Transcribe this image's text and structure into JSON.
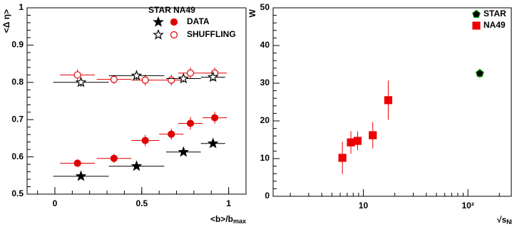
{
  "chart_data": [
    {
      "type": "scatter",
      "y_label": "<Δ η>",
      "x_label": "<b>/b",
      "x_label_sub": "max",
      "xlim": [
        -0.16,
        1.1
      ],
      "ylim": [
        0.5,
        1
      ],
      "xticks": [
        0,
        0.5,
        1
      ],
      "yticks": [
        0.5,
        0.6,
        0.7,
        0.8,
        0.9,
        1
      ],
      "legend": {
        "title": "STAR NA49",
        "labels": [
          "DATA",
          "SHUFFLING"
        ]
      },
      "series": [
        {
          "legend": 1,
          "marker": "circle",
          "filled": false,
          "color": "#e00000",
          "x": [
            0.13,
            0.34,
            0.52,
            0.67,
            0.78,
            0.92
          ],
          "values": [
            0.82,
            0.808,
            0.806,
            0.806,
            0.825,
            0.825
          ],
          "xerr": [
            0.1,
            0.1,
            0.08,
            0.07,
            0.07,
            0.07
          ],
          "yerr": [
            0.015,
            0.012,
            0.015,
            0.015,
            0.015,
            0.015
          ]
        },
        {
          "legend": 0,
          "marker": "circle",
          "filled": true,
          "color": "#e00000",
          "x": [
            0.13,
            0.34,
            0.52,
            0.67,
            0.78,
            0.92
          ],
          "values": [
            0.583,
            0.596,
            0.644,
            0.661,
            0.69,
            0.705
          ],
          "xerr": [
            0.1,
            0.1,
            0.08,
            0.07,
            0.07,
            0.07
          ],
          "yerr": [
            0.01,
            0.012,
            0.015,
            0.015,
            0.017,
            0.016
          ]
        },
        {
          "legend": 1,
          "marker": "star",
          "filled": false,
          "color": "#000000",
          "x": [
            0.15,
            0.47,
            0.74,
            0.91
          ],
          "values": [
            0.8,
            0.818,
            0.81,
            0.814
          ],
          "xerr": [
            0.16,
            0.16,
            0.1,
            0.07
          ],
          "yerr": [
            0.012,
            0.012,
            0.01,
            0.01
          ]
        },
        {
          "legend": 0,
          "marker": "star",
          "filled": true,
          "color": "#000000",
          "x": [
            0.15,
            0.47,
            0.74,
            0.91
          ],
          "values": [
            0.548,
            0.575,
            0.613,
            0.636
          ],
          "xerr": [
            0.16,
            0.16,
            0.1,
            0.07
          ],
          "yerr": [
            0.004,
            0.004,
            0.005,
            0.005
          ]
        }
      ]
    },
    {
      "type": "scatter",
      "log_x": true,
      "y_label": "W",
      "x_label": "√s",
      "x_label_sub": "NN",
      "xlim": [
        1.37,
        260
      ],
      "ylim": [
        0,
        50
      ],
      "xticks": [
        10,
        {
          "value": 100,
          "label": "10²"
        }
      ],
      "yticks": [
        0,
        10,
        20,
        30,
        40,
        50
      ],
      "xminorticks": [
        2,
        3,
        4,
        5,
        6,
        7,
        8,
        9,
        20,
        30,
        40,
        50,
        60,
        70,
        80,
        90,
        200
      ],
      "series": [
        {
          "name": "STAR",
          "marker": "pentagon",
          "filled": true,
          "color": "#000000",
          "error_color": "#00c000",
          "x": [
            130
          ],
          "values": [
            32.6
          ],
          "yerr": [
            1.3
          ]
        },
        {
          "name": "NA49",
          "marker": "square",
          "filled": true,
          "color": "#ee0000",
          "error_color": "#ee0000",
          "x": [
            6.3,
            7.6,
            8.8,
            12.3,
            17.3
          ],
          "values": [
            10.2,
            14.3,
            14.7,
            16.2,
            25.5
          ],
          "yerr": [
            4.3,
            3,
            2.5,
            3.5,
            5.2
          ]
        }
      ]
    }
  ]
}
